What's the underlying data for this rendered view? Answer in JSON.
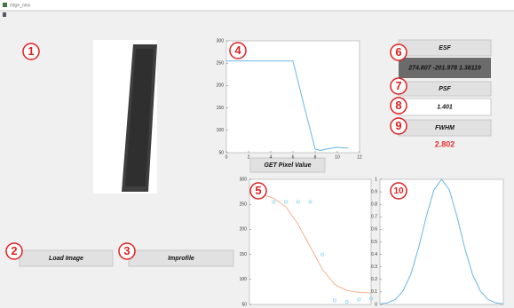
{
  "window": {
    "title": "edge_new"
  },
  "markers": [
    "1",
    "2",
    "3",
    "4",
    "5",
    "6",
    "7",
    "8",
    "9",
    "10"
  ],
  "buttons": {
    "load_image": "Load Image",
    "improfile": "Improfile",
    "get_pixel_value": "GET Pixel Value",
    "esf": "ESF",
    "psf": "PSF",
    "fwhm": "FWHM"
  },
  "results": {
    "esf": "274.807   -201.978   1.38119",
    "psf": "1.401",
    "fwhm": "2.802"
  },
  "plots": [
    {
      "type": "line",
      "xlim": [
        0,
        12
      ],
      "xticks": [
        0,
        2,
        4,
        6,
        8,
        10,
        12
      ],
      "ylim": [
        50,
        300
      ],
      "yticks": [
        50,
        100,
        150,
        200,
        250,
        300
      ],
      "series": [
        {
          "type": "line",
          "color": "#5aaee0",
          "x": [
            0,
            1,
            2,
            3,
            4,
            5,
            6,
            7,
            8,
            8.5,
            9,
            10,
            11
          ],
          "values": [
            255,
            255,
            255,
            255,
            255,
            255,
            255,
            155,
            58,
            55,
            58,
            62,
            60
          ]
        }
      ]
    },
    {
      "type": "line",
      "xlim": [
        0,
        10
      ],
      "ylim": [
        50,
        300
      ],
      "yticks": [
        50,
        100,
        150,
        200,
        250,
        300
      ],
      "series": [
        {
          "type": "scatter",
          "color": "#8fd6ea",
          "x": [
            2,
            3,
            4,
            5,
            6,
            7,
            8,
            9,
            10
          ],
          "values": [
            255,
            255,
            255,
            255,
            150,
            58,
            55,
            60,
            62
          ]
        },
        {
          "type": "line",
          "color": "#f2aa85",
          "x": [
            0,
            1,
            2,
            3,
            4,
            5,
            6,
            7,
            8,
            9,
            10
          ],
          "values": [
            272,
            270,
            262,
            245,
            210,
            165,
            120,
            90,
            78,
            74,
            73
          ]
        }
      ]
    },
    {
      "type": "line",
      "xlim": [
        -4,
        4
      ],
      "ylim": [
        0,
        1
      ],
      "yticks": [
        0,
        0.1,
        0.2,
        0.3,
        0.4,
        0.5,
        0.6,
        0.7,
        0.8,
        0.9,
        1
      ],
      "series": [
        {
          "type": "line",
          "color": "#5aaee0",
          "x": [
            -4,
            -3.5,
            -3,
            -2.5,
            -2,
            -1.5,
            -1,
            -0.5,
            0,
            0.5,
            1,
            1.5,
            2,
            2.5,
            3,
            3.5,
            4
          ],
          "values": [
            0.004,
            0.013,
            0.04,
            0.11,
            0.24,
            0.45,
            0.7,
            0.915,
            1,
            0.915,
            0.7,
            0.45,
            0.24,
            0.11,
            0.04,
            0.013,
            0.004
          ]
        }
      ]
    }
  ]
}
